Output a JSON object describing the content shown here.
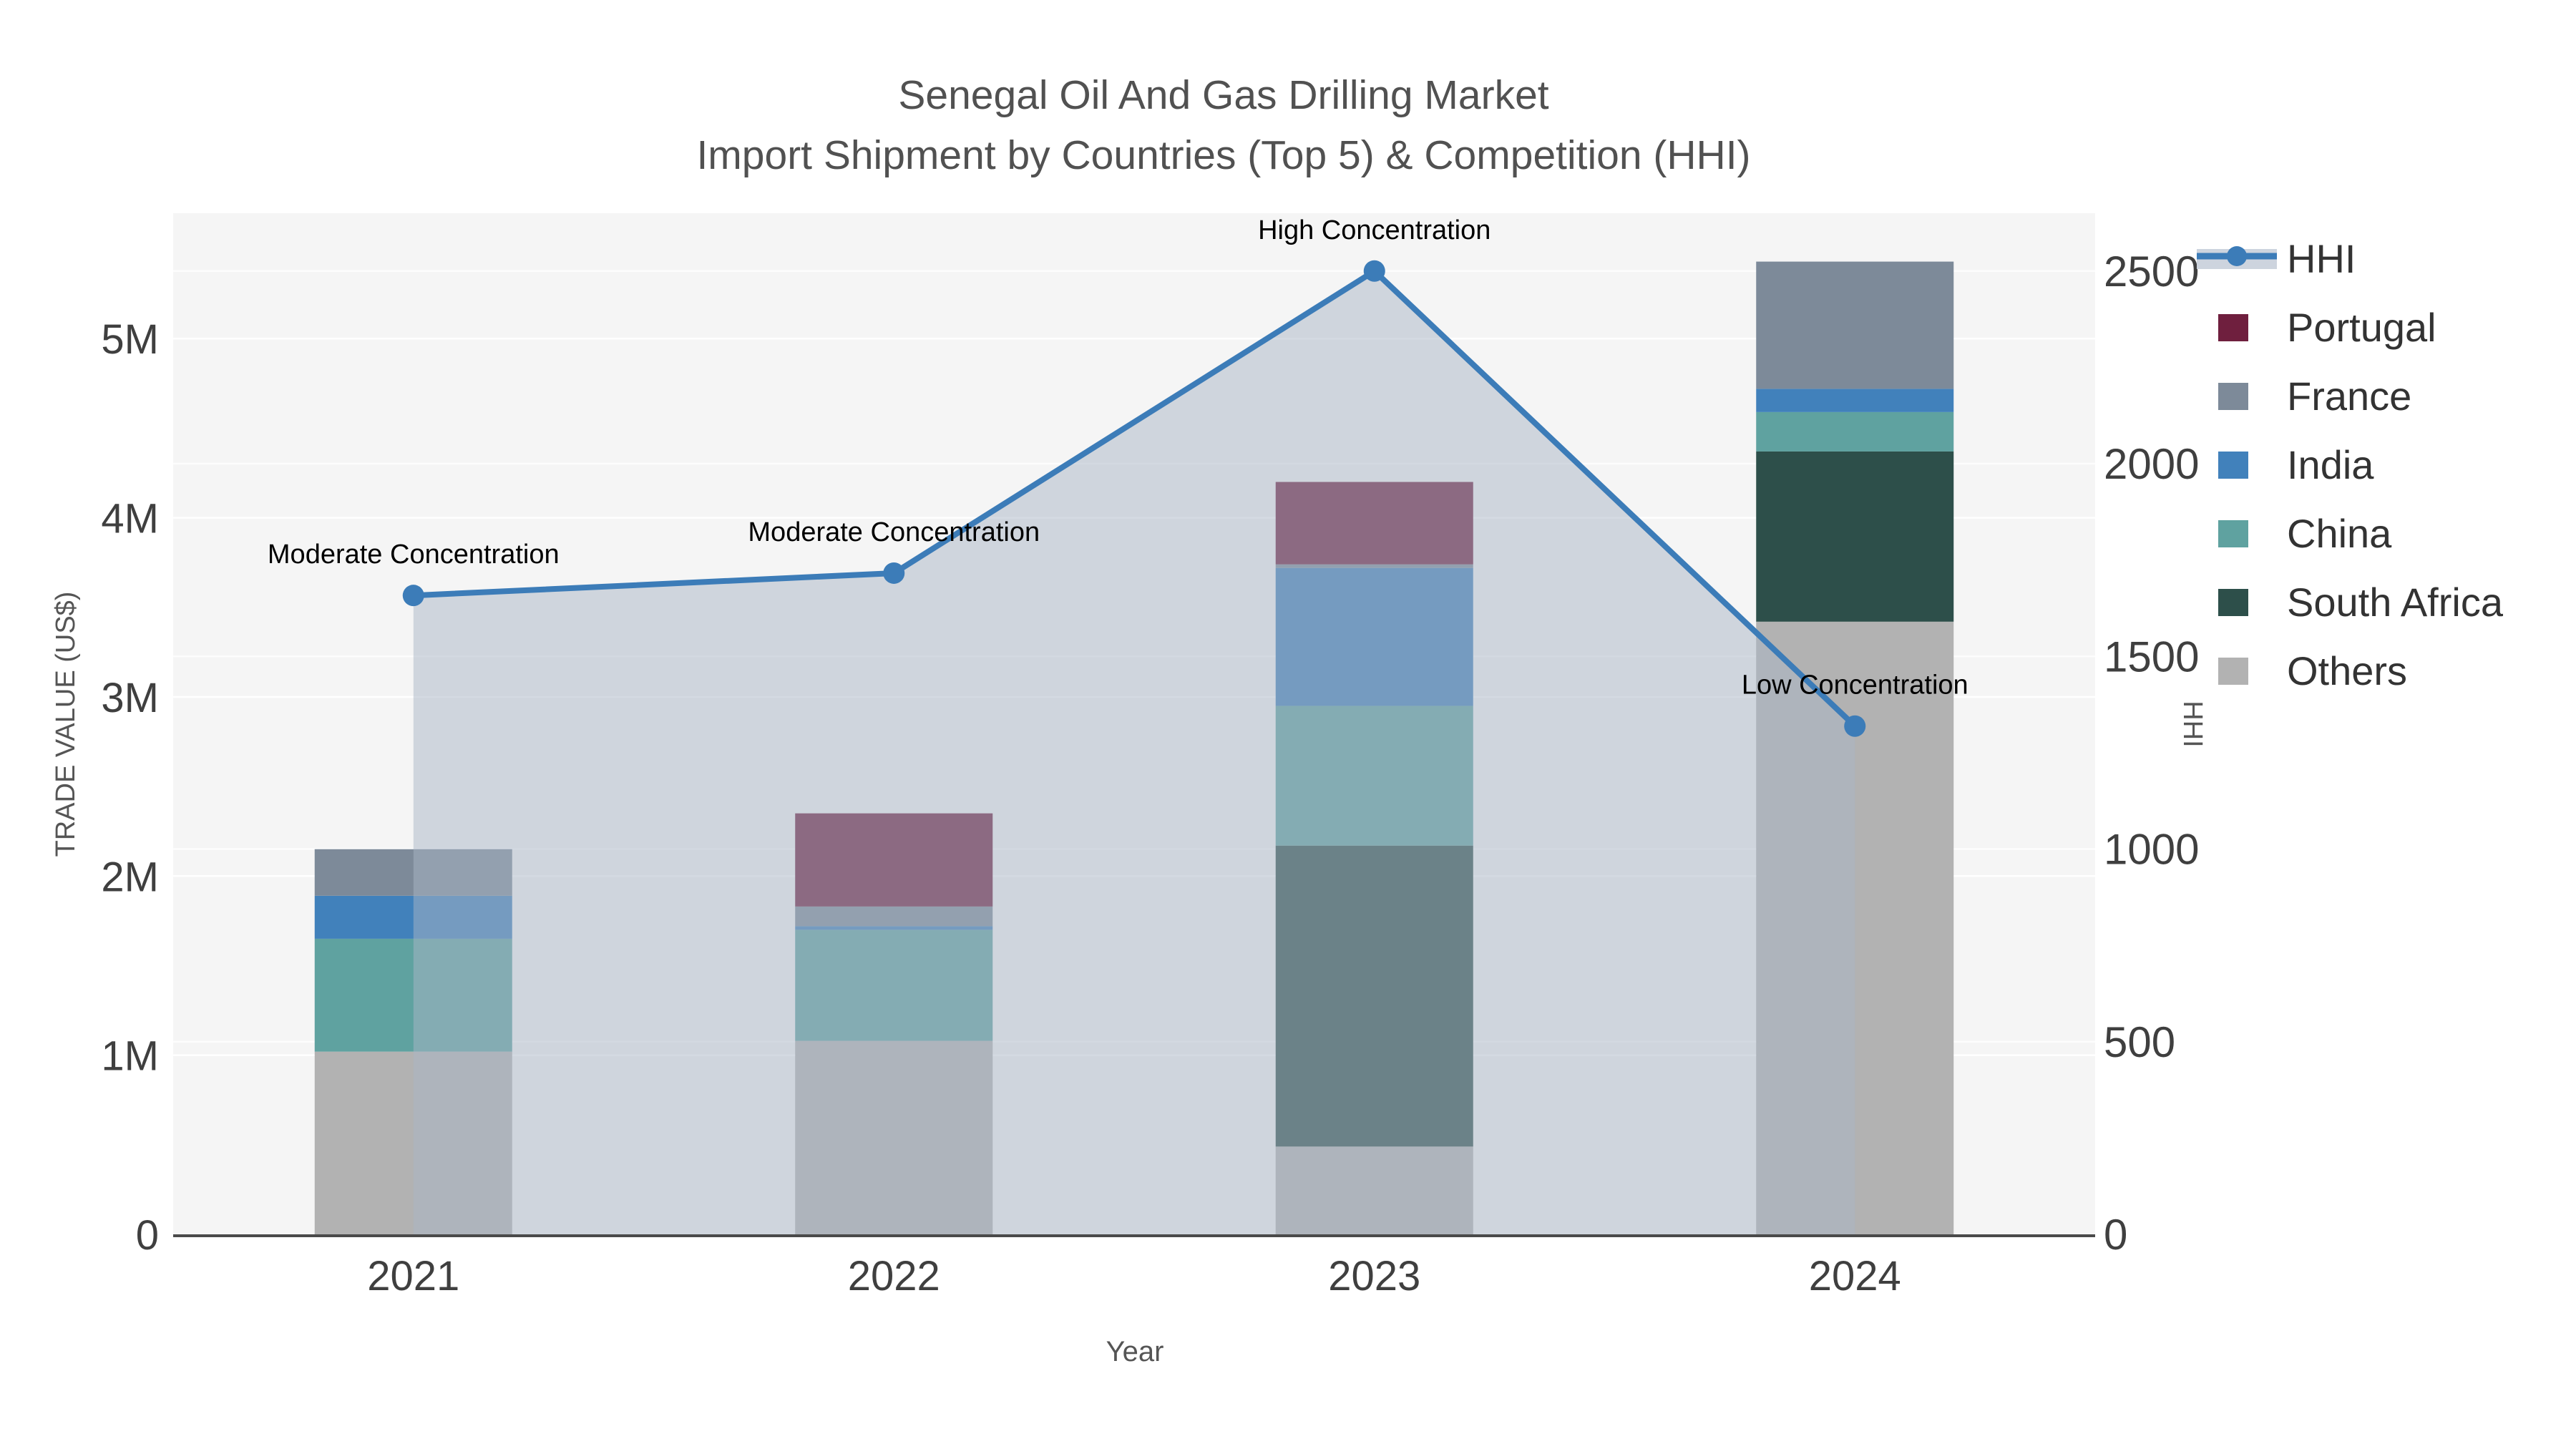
{
  "chart_data": {
    "type": "combo-stacked-bar-line",
    "title": {
      "line1": "Senegal Oil And Gas Drilling Market",
      "line2": "Import Shipment by Countries (Top 5) & Competition (HHI)"
    },
    "xlabel": "Year",
    "categories": [
      "2021",
      "2022",
      "2023",
      "2024"
    ],
    "y_left": {
      "label": "TRADE VALUE (US$)",
      "tick_values": [
        0,
        1000000,
        2000000,
        3000000,
        4000000,
        5000000
      ],
      "tick_labels": [
        "0",
        "1M",
        "2M",
        "3M",
        "4M",
        "5M"
      ],
      "max": 5700000
    },
    "y_right": {
      "label": "HHI",
      "tick_values": [
        0,
        500,
        1000,
        1500,
        2000,
        2500
      ],
      "tick_labels": [
        "0",
        "500",
        "1000",
        "1500",
        "2000",
        "2500"
      ],
      "max": 2650
    },
    "series": [
      {
        "name": "Others",
        "color": "#b2b2b2",
        "values": [
          1020000,
          1080000,
          490000,
          3420000
        ]
      },
      {
        "name": "South Africa",
        "color": "#2d4f4a",
        "values": [
          0,
          0,
          1680000,
          950000
        ]
      },
      {
        "name": "China",
        "color": "#5fa2a0",
        "values": [
          630000,
          620000,
          780000,
          220000
        ]
      },
      {
        "name": "India",
        "color": "#4181bb",
        "values": [
          240000,
          20000,
          770000,
          130000
        ]
      },
      {
        "name": "France",
        "color": "#7d8a99",
        "values": [
          260000,
          110000,
          20000,
          710000
        ]
      },
      {
        "name": "Portugal",
        "color": "#6f1f3e",
        "values": [
          0,
          520000,
          460000,
          0
        ]
      }
    ],
    "hhi": {
      "name": "HHI",
      "line_color": "#3c7cb8",
      "area_color": "#a9b6c6",
      "values": [
        1658,
        1716,
        2500,
        1319
      ]
    },
    "annotations": [
      {
        "text": "Moderate Concentration",
        "category_index": 0
      },
      {
        "text": "Moderate Concentration",
        "category_index": 1
      },
      {
        "text": "High Concentration",
        "category_index": 2
      },
      {
        "text": "Low Concentration",
        "category_index": 3
      }
    ],
    "legend": {
      "items": [
        {
          "label": "HHI",
          "type": "line",
          "color": "#3c7cb8",
          "band_color": "#cdd4de"
        },
        {
          "label": "Portugal",
          "type": "box",
          "color": "#6f1f3e"
        },
        {
          "label": "France",
          "type": "box",
          "color": "#7d8a99"
        },
        {
          "label": "India",
          "type": "box",
          "color": "#4181bb"
        },
        {
          "label": "China",
          "type": "box",
          "color": "#5fa2a0"
        },
        {
          "label": "South Africa",
          "type": "box",
          "color": "#2d4f4a"
        },
        {
          "label": "Others",
          "type": "box",
          "color": "#b2b2b2"
        }
      ]
    },
    "style": {
      "plot_bg": "#f5f5f5",
      "grid_color": "#ffffff",
      "axis_line_color": "#4a4a4a",
      "title_color": "#515151",
      "tick_color": "#3f3f3f",
      "axis_title_color": "#555555",
      "annotation_color": "#000000",
      "legend_text_color": "#333333"
    }
  }
}
